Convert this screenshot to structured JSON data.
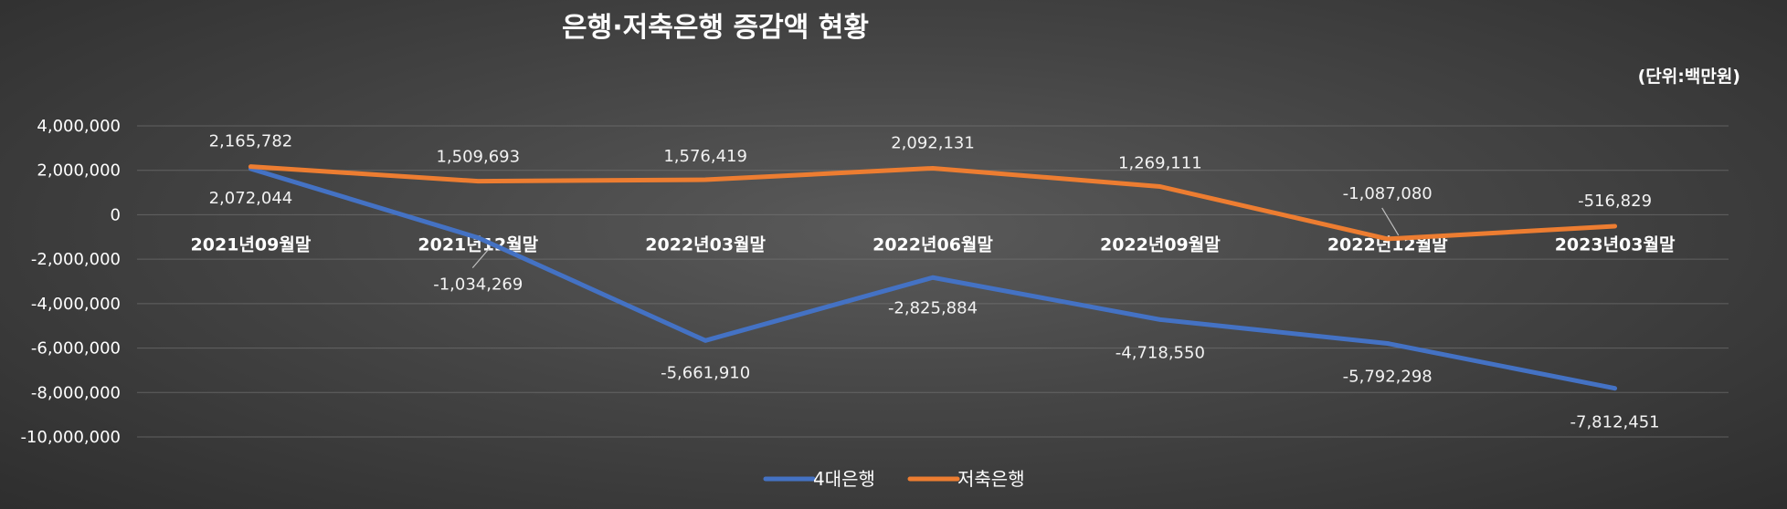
{
  "chart_data": {
    "type": "line",
    "title": "은행·저축은행 증감액 현황",
    "unit_note": "(단위:백만원)",
    "categories": [
      "2021년09월말",
      "2021년12월말",
      "2022년03월말",
      "2022년06월말",
      "2022년09월말",
      "2022년12월말",
      "2023년03월말"
    ],
    "series": [
      {
        "name": "4대은행",
        "color": "#4472c4",
        "values": [
          2072044,
          -1034269,
          -5661910,
          -2825884,
          -4718550,
          -5792298,
          -7812451
        ],
        "labels": [
          "2,072,044",
          "-1,034,269",
          "-5,661,910",
          "-2,825,884",
          "-4,718,550",
          "-5,792,298",
          "-7,812,451"
        ]
      },
      {
        "name": "저축은행",
        "color": "#ed7d31",
        "values": [
          2165782,
          1509693,
          1576419,
          2092131,
          1269111,
          -1087080,
          -516829
        ],
        "labels": [
          "2,165,782",
          "1,509,693",
          "1,576,419",
          "2,092,131",
          "1,269,111",
          "-1,087,080",
          "-516,829"
        ]
      }
    ],
    "ylim": [
      -10000000,
      4000000
    ],
    "yticks": [
      4000000,
      2000000,
      0,
      -2000000,
      -4000000,
      -6000000,
      -8000000,
      -10000000
    ],
    "ytick_labels": [
      "4,000,000",
      "2,000,000",
      "0",
      "-2,000,000",
      "-4,000,000",
      "-6,000,000",
      "-8,000,000",
      "-10,000,000"
    ],
    "grid": true,
    "legend_position": "bottom-center"
  }
}
